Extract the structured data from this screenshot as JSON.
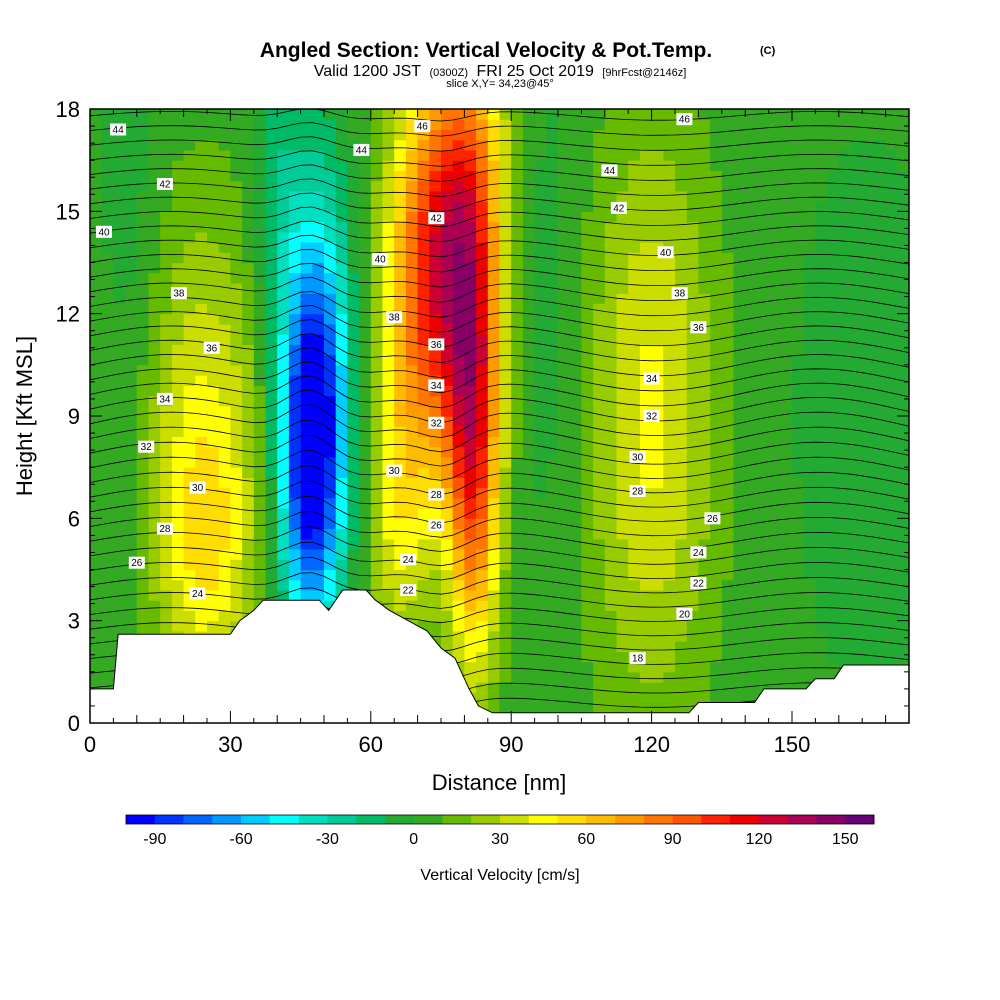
{
  "chart_data": {
    "type": "heatmap",
    "title": "Angled Section: Vertical Velocity & Pot.Temp.",
    "title_mark": "(C)",
    "subtitle_a": "Valid 1200 JST",
    "subtitle_b": "(0300Z)",
    "subtitle_c": "FRI 25 Oct 2019",
    "subtitle_d": "[9hrFcst@2146z]",
    "slice": "slice X,Y= 34,23@45°",
    "xlabel": "Distance [nm]",
    "ylabel": "Height [Kft MSL]",
    "xlim": [
      0,
      175
    ],
    "ylim": [
      0,
      18
    ],
    "xticks": [
      0,
      30,
      60,
      90,
      120,
      150
    ],
    "yticks": [
      0,
      3,
      6,
      9,
      12,
      15,
      18
    ],
    "xtick_labels": [
      "0",
      "30",
      "60",
      "90",
      "120",
      "150"
    ],
    "ytick_labels": [
      "0",
      "3",
      "6",
      "9",
      "12",
      "15",
      "18"
    ],
    "terrain_top_kft": [
      [
        0,
        1.0
      ],
      [
        5,
        1.0
      ],
      [
        6,
        2.6
      ],
      [
        30,
        2.6
      ],
      [
        32,
        3.0
      ],
      [
        35,
        3.3
      ],
      [
        37,
        3.6
      ],
      [
        49,
        3.6
      ],
      [
        51,
        3.3
      ],
      [
        54,
        3.9
      ],
      [
        59,
        3.9
      ],
      [
        61,
        3.6
      ],
      [
        64,
        3.3
      ],
      [
        68,
        3.0
      ],
      [
        72,
        2.7
      ],
      [
        75,
        2.2
      ],
      [
        78,
        1.9
      ],
      [
        81,
        1.0
      ],
      [
        83,
        0.5
      ],
      [
        86,
        0.3
      ],
      [
        92,
        0.3
      ],
      [
        128,
        0.3
      ],
      [
        130,
        0.6
      ],
      [
        142,
        0.6
      ],
      [
        144,
        1.0
      ],
      [
        153,
        1.0
      ],
      [
        155,
        1.3
      ],
      [
        159,
        1.3
      ],
      [
        161,
        1.7
      ],
      [
        175,
        1.7
      ]
    ],
    "colorbar": {
      "label": "Vertical Velocity [cm/s]",
      "tick_labels": [
        "-90",
        "-60",
        "-30",
        "0",
        "30",
        "60",
        "90",
        "120",
        "150"
      ],
      "tick_values": [
        -90,
        -60,
        -30,
        0,
        30,
        60,
        90,
        120,
        150
      ],
      "min": -100,
      "max": 160,
      "step": 10,
      "colors": [
        "#0000ff",
        "#0033ff",
        "#0066ff",
        "#0099ff",
        "#00ccff",
        "#00ffff",
        "#00e0c0",
        "#00cc99",
        "#00bb66",
        "#22aa33",
        "#33aa22",
        "#66bb00",
        "#99cc00",
        "#ccdd00",
        "#ffff00",
        "#ffdd00",
        "#ffbb00",
        "#ff9900",
        "#ff7700",
        "#ff5500",
        "#ff2200",
        "#ee0000",
        "#cc0033",
        "#aa0055",
        "#880066",
        "#660077"
      ]
    },
    "velocity_features": [
      {
        "x": 0,
        "y": 9,
        "sx": 200,
        "sy": 100,
        "w": 3
      },
      {
        "x": 9,
        "y": 12,
        "sx": 5,
        "sy": 6,
        "w": -12
      },
      {
        "x": 24,
        "y": 8,
        "sx": 11,
        "sy": 5,
        "w": 38
      },
      {
        "x": 25,
        "y": 5,
        "sx": 6,
        "sy": 2.5,
        "w": 22
      },
      {
        "x": 47,
        "y": 7.5,
        "sx": 5,
        "sy": 3.5,
        "w": -100
      },
      {
        "x": 49,
        "y": 11.5,
        "sx": 5,
        "sy": 4,
        "w": -45
      },
      {
        "x": 40,
        "y": 15,
        "sx": 4,
        "sy": 3,
        "w": -22
      },
      {
        "x": 73,
        "y": 13,
        "sx": 7,
        "sy": 4,
        "w": 95
      },
      {
        "x": 82,
        "y": 8,
        "sx": 4,
        "sy": 4.5,
        "w": 95
      },
      {
        "x": 81,
        "y": 16,
        "sx": 6,
        "sy": 4,
        "w": 55
      },
      {
        "x": 66,
        "y": 6,
        "sx": 5,
        "sy": 3,
        "w": 35
      },
      {
        "x": 98,
        "y": 12,
        "sx": 5,
        "sy": 5,
        "w": -10
      },
      {
        "x": 120,
        "y": 9,
        "sx": 10,
        "sy": 6,
        "w": 40
      },
      {
        "x": 166,
        "y": 9,
        "sx": 10,
        "sy": 5,
        "w": -8
      }
    ],
    "theta_labels": [
      {
        "x": 6,
        "y": 17.4,
        "text": "44"
      },
      {
        "x": 16,
        "y": 15.8,
        "text": "42"
      },
      {
        "x": 3,
        "y": 14.4,
        "text": "40"
      },
      {
        "x": 19,
        "y": 12.6,
        "text": "38"
      },
      {
        "x": 26,
        "y": 11.0,
        "text": "36"
      },
      {
        "x": 16,
        "y": 9.5,
        "text": "34"
      },
      {
        "x": 12,
        "y": 8.1,
        "text": "32"
      },
      {
        "x": 23,
        "y": 6.9,
        "text": "30"
      },
      {
        "x": 16,
        "y": 5.7,
        "text": "28"
      },
      {
        "x": 10,
        "y": 4.7,
        "text": "26"
      },
      {
        "x": 23,
        "y": 3.8,
        "text": "24"
      },
      {
        "x": 58,
        "y": 16.8,
        "text": "44"
      },
      {
        "x": 71,
        "y": 17.5,
        "text": "46"
      },
      {
        "x": 74,
        "y": 14.8,
        "text": "42"
      },
      {
        "x": 62,
        "y": 13.6,
        "text": "40"
      },
      {
        "x": 65,
        "y": 11.9,
        "text": "38"
      },
      {
        "x": 74,
        "y": 11.1,
        "text": "36"
      },
      {
        "x": 74,
        "y": 9.9,
        "text": "34"
      },
      {
        "x": 74,
        "y": 8.8,
        "text": "32"
      },
      {
        "x": 65,
        "y": 7.4,
        "text": "30"
      },
      {
        "x": 74,
        "y": 6.7,
        "text": "28"
      },
      {
        "x": 74,
        "y": 5.8,
        "text": "26"
      },
      {
        "x": 68,
        "y": 4.8,
        "text": "24"
      },
      {
        "x": 68,
        "y": 3.9,
        "text": "22"
      },
      {
        "x": 127,
        "y": 17.7,
        "text": "46"
      },
      {
        "x": 111,
        "y": 16.2,
        "text": "44"
      },
      {
        "x": 113,
        "y": 15.1,
        "text": "42"
      },
      {
        "x": 123,
        "y": 13.8,
        "text": "40"
      },
      {
        "x": 126,
        "y": 12.6,
        "text": "38"
      },
      {
        "x": 130,
        "y": 11.6,
        "text": "36"
      },
      {
        "x": 120,
        "y": 10.1,
        "text": "34"
      },
      {
        "x": 120,
        "y": 9.0,
        "text": "32"
      },
      {
        "x": 117,
        "y": 7.8,
        "text": "30"
      },
      {
        "x": 117,
        "y": 6.8,
        "text": "28"
      },
      {
        "x": 133,
        "y": 6.0,
        "text": "26"
      },
      {
        "x": 130,
        "y": 5.0,
        "text": "24"
      },
      {
        "x": 130,
        "y": 4.1,
        "text": "22"
      },
      {
        "x": 127,
        "y": 3.2,
        "text": "20"
      },
      {
        "x": 117,
        "y": 1.9,
        "text": "18"
      }
    ]
  }
}
